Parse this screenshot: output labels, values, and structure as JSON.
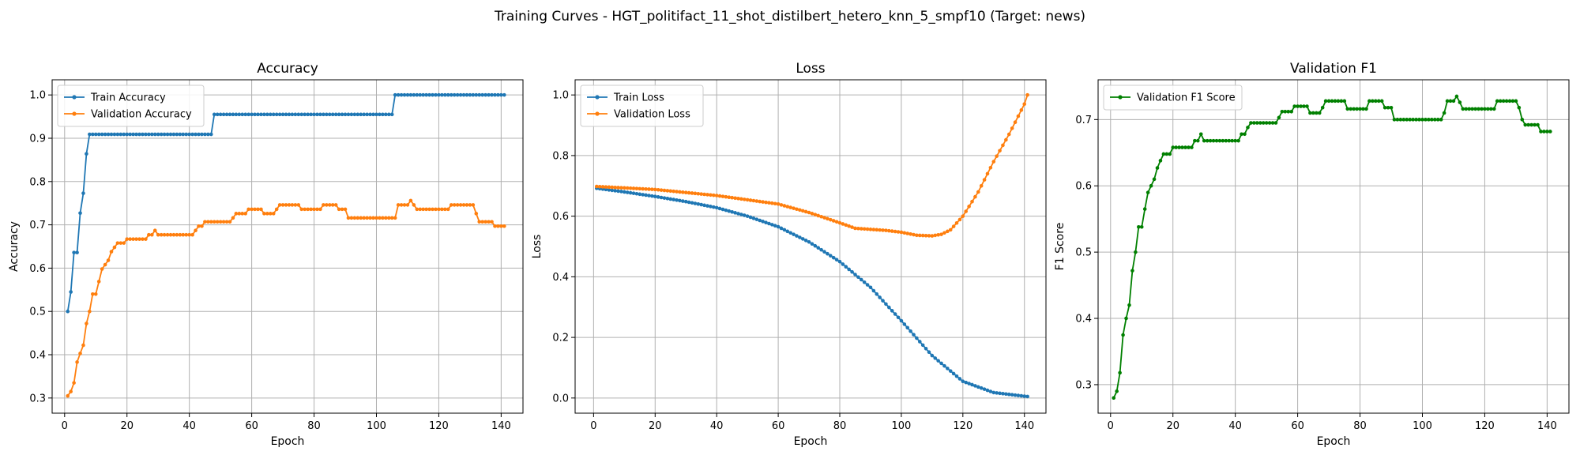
{
  "figure": {
    "suptitle": "Training Curves - HGT_politifact_11_shot_distilbert_hetero_knn_5_smpf10 (Target: news)"
  },
  "chart_data": [
    {
      "type": "line",
      "title": "Accuracy",
      "xlabel": "Epoch",
      "ylabel": "Accuracy",
      "xlim": [
        -4,
        147
      ],
      "ylim": [
        0.265,
        1.035
      ],
      "xticks": [
        0,
        20,
        40,
        60,
        80,
        100,
        120,
        140
      ],
      "yticks": [
        0.3,
        0.4,
        0.5,
        0.6,
        0.7,
        0.8,
        0.9,
        1.0
      ],
      "ytick_labels": [
        "0.3",
        "0.4",
        "0.5",
        "0.6",
        "0.7",
        "0.8",
        "0.9",
        "1.0"
      ],
      "grid": true,
      "legend_position": "upper-left",
      "series": [
        {
          "name": "Train Accuracy",
          "color": "#1f77b4",
          "points": [
            [
              1,
              0.5
            ],
            [
              2,
              0.545
            ],
            [
              3,
              0.636
            ],
            [
              4,
              0.636
            ],
            [
              5,
              0.727
            ],
            [
              6,
              0.773
            ],
            [
              7,
              0.864
            ],
            [
              8,
              0.909
            ],
            [
              47,
              0.909
            ],
            [
              48,
              0.955
            ],
            [
              105,
              0.955
            ],
            [
              106,
              1.0
            ],
            [
              141,
              1.0
            ]
          ]
        },
        {
          "name": "Validation Accuracy",
          "color": "#ff7f0e",
          "points": [
            [
              1,
              0.305
            ],
            [
              2,
              0.315
            ],
            [
              3,
              0.335
            ],
            [
              4,
              0.383
            ],
            [
              5,
              0.403
            ],
            [
              6,
              0.422
            ],
            [
              7,
              0.472
            ],
            [
              8,
              0.5
            ],
            [
              9,
              0.54
            ],
            [
              10,
              0.54
            ],
            [
              11,
              0.569
            ],
            [
              12,
              0.598
            ],
            [
              13,
              0.608
            ],
            [
              14,
              0.618
            ],
            [
              15,
              0.638
            ],
            [
              16,
              0.648
            ],
            [
              17,
              0.658
            ],
            [
              19,
              0.658
            ],
            [
              20,
              0.667
            ],
            [
              26,
              0.667
            ],
            [
              27,
              0.677
            ],
            [
              28,
              0.677
            ],
            [
              29,
              0.687
            ],
            [
              30,
              0.677
            ],
            [
              41,
              0.677
            ],
            [
              42,
              0.687
            ],
            [
              43,
              0.697
            ],
            [
              44,
              0.697
            ],
            [
              45,
              0.707
            ],
            [
              53,
              0.707
            ],
            [
              54,
              0.716
            ],
            [
              55,
              0.726
            ],
            [
              58,
              0.726
            ],
            [
              59,
              0.736
            ],
            [
              63,
              0.736
            ],
            [
              64,
              0.726
            ],
            [
              67,
              0.726
            ],
            [
              68,
              0.736
            ],
            [
              69,
              0.746
            ],
            [
              75,
              0.746
            ],
            [
              76,
              0.736
            ],
            [
              82,
              0.736
            ],
            [
              83,
              0.746
            ],
            [
              87,
              0.746
            ],
            [
              88,
              0.736
            ],
            [
              90,
              0.736
            ],
            [
              91,
              0.716
            ],
            [
              106,
              0.716
            ],
            [
              107,
              0.746
            ],
            [
              110,
              0.746
            ],
            [
              111,
              0.756
            ],
            [
              112,
              0.746
            ],
            [
              113,
              0.736
            ],
            [
              123,
              0.736
            ],
            [
              124,
              0.746
            ],
            [
              131,
              0.746
            ],
            [
              132,
              0.726
            ],
            [
              133,
              0.707
            ],
            [
              137,
              0.707
            ],
            [
              138,
              0.697
            ],
            [
              141,
              0.697
            ]
          ]
        }
      ]
    },
    {
      "type": "line",
      "title": "Loss",
      "xlabel": "Epoch",
      "ylabel": "Loss",
      "xlim": [
        -6,
        147
      ],
      "ylim": [
        -0.05,
        1.05
      ],
      "xticks": [
        0,
        20,
        40,
        60,
        80,
        100,
        120,
        140
      ],
      "yticks": [
        0.0,
        0.2,
        0.4,
        0.6,
        0.8,
        1.0
      ],
      "ytick_labels": [
        "0.0",
        "0.2",
        "0.4",
        "0.6",
        "0.8",
        "1.0"
      ],
      "grid": true,
      "legend_position": "upper-left",
      "series": [
        {
          "name": "Train Loss",
          "color": "#1f77b4",
          "points": [
            [
              1,
              0.692
            ],
            [
              10,
              0.68
            ],
            [
              20,
              0.665
            ],
            [
              30,
              0.648
            ],
            [
              40,
              0.628
            ],
            [
              50,
              0.6
            ],
            [
              60,
              0.565
            ],
            [
              70,
              0.515
            ],
            [
              80,
              0.45
            ],
            [
              90,
              0.365
            ],
            [
              100,
              0.255
            ],
            [
              110,
              0.14
            ],
            [
              120,
              0.055
            ],
            [
              130,
              0.018
            ],
            [
              140,
              0.006
            ],
            [
              141,
              0.005
            ]
          ]
        },
        {
          "name": "Validation Loss",
          "color": "#ff7f0e",
          "points": [
            [
              1,
              0.698
            ],
            [
              20,
              0.688
            ],
            [
              40,
              0.668
            ],
            [
              60,
              0.64
            ],
            [
              70,
              0.612
            ],
            [
              80,
              0.578
            ],
            [
              85,
              0.56
            ],
            [
              95,
              0.553
            ],
            [
              100,
              0.547
            ],
            [
              105,
              0.537
            ],
            [
              110,
              0.535
            ],
            [
              113,
              0.54
            ],
            [
              116,
              0.555
            ],
            [
              120,
              0.6
            ],
            [
              125,
              0.68
            ],
            [
              130,
              0.78
            ],
            [
              135,
              0.87
            ],
            [
              140,
              0.97
            ],
            [
              141,
              1.0
            ]
          ]
        }
      ]
    },
    {
      "type": "line",
      "title": "Validation F1",
      "xlabel": "Epoch",
      "ylabel": "F1 Score",
      "xlim": [
        -4,
        147
      ],
      "ylim": [
        0.257,
        0.76
      ],
      "xticks": [
        0,
        20,
        40,
        60,
        80,
        100,
        120,
        140
      ],
      "yticks": [
        0.3,
        0.4,
        0.5,
        0.6,
        0.7
      ],
      "ytick_labels": [
        "0.3",
        "0.4",
        "0.5",
        "0.6",
        "0.7"
      ],
      "grid": true,
      "legend_position": "upper-left",
      "series": [
        {
          "name": "Validation F1 Score",
          "color": "#008000",
          "points": [
            [
              1,
              0.28
            ],
            [
              2,
              0.29
            ],
            [
              3,
              0.318
            ],
            [
              4,
              0.375
            ],
            [
              5,
              0.4
            ],
            [
              6,
              0.42
            ],
            [
              7,
              0.472
            ],
            [
              8,
              0.5
            ],
            [
              9,
              0.538
            ],
            [
              10,
              0.538
            ],
            [
              11,
              0.565
            ],
            [
              12,
              0.59
            ],
            [
              13,
              0.6
            ],
            [
              14,
              0.61
            ],
            [
              15,
              0.627
            ],
            [
              16,
              0.638
            ],
            [
              17,
              0.648
            ],
            [
              19,
              0.648
            ],
            [
              20,
              0.658
            ],
            [
              26,
              0.658
            ],
            [
              27,
              0.668
            ],
            [
              28,
              0.668
            ],
            [
              29,
              0.678
            ],
            [
              30,
              0.668
            ],
            [
              41,
              0.668
            ],
            [
              42,
              0.678
            ],
            [
              43,
              0.678
            ],
            [
              44,
              0.688
            ],
            [
              45,
              0.695
            ],
            [
              53,
              0.695
            ],
            [
              54,
              0.703
            ],
            [
              55,
              0.712
            ],
            [
              58,
              0.712
            ],
            [
              59,
              0.72
            ],
            [
              63,
              0.72
            ],
            [
              64,
              0.71
            ],
            [
              67,
              0.71
            ],
            [
              68,
              0.718
            ],
            [
              69,
              0.728
            ],
            [
              75,
              0.728
            ],
            [
              76,
              0.716
            ],
            [
              82,
              0.716
            ],
            [
              83,
              0.728
            ],
            [
              87,
              0.728
            ],
            [
              88,
              0.718
            ],
            [
              90,
              0.718
            ],
            [
              91,
              0.7
            ],
            [
              106,
              0.7
            ],
            [
              107,
              0.71
            ],
            [
              108,
              0.728
            ],
            [
              110,
              0.728
            ],
            [
              111,
              0.735
            ],
            [
              112,
              0.726
            ],
            [
              113,
              0.716
            ],
            [
              123,
              0.716
            ],
            [
              124,
              0.728
            ],
            [
              130,
              0.728
            ],
            [
              131,
              0.718
            ],
            [
              132,
              0.7
            ],
            [
              133,
              0.692
            ],
            [
              137,
              0.692
            ],
            [
              138,
              0.682
            ],
            [
              141,
              0.682
            ]
          ]
        }
      ]
    }
  ]
}
